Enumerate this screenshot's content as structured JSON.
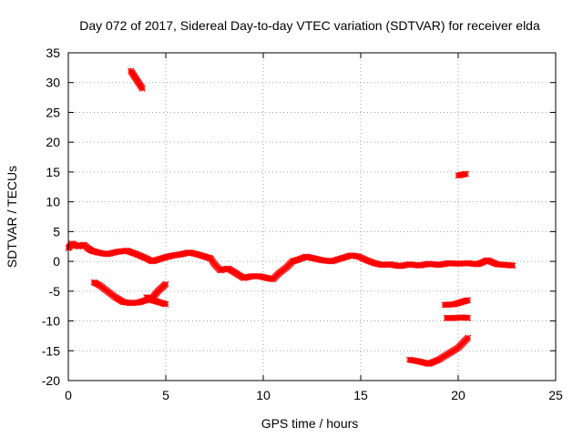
{
  "chart_data": {
    "type": "scatter",
    "title": "Day 072 of 2017, Sidereal Day-to-day VTEC variation (SDTVAR) for receiver elda",
    "xlabel": "GPS time / hours",
    "ylabel": "SDTVAR / TECUs",
    "xlim": [
      0,
      25
    ],
    "ylim": [
      -20,
      35
    ],
    "xticks": [
      0,
      5,
      10,
      15,
      20,
      25
    ],
    "yticks": [
      -20,
      -15,
      -10,
      -5,
      0,
      5,
      10,
      15,
      20,
      25,
      30,
      35
    ],
    "grid": true,
    "legend": "none",
    "marker_color": "#ff0000",
    "series": [
      {
        "name": "main-track",
        "points": [
          [
            0,
            2.2
          ],
          [
            0.2,
            3.0
          ],
          [
            0.5,
            2.5
          ],
          [
            0.8,
            2.8
          ],
          [
            1.0,
            2.2
          ],
          [
            1.2,
            1.8
          ],
          [
            1.5,
            1.5
          ],
          [
            2.0,
            1.2
          ],
          [
            2.5,
            1.6
          ],
          [
            3.0,
            1.8
          ],
          [
            3.5,
            1.2
          ],
          [
            4.0,
            0.5
          ],
          [
            4.3,
            0.0
          ],
          [
            4.6,
            0.3
          ],
          [
            5.0,
            0.7
          ],
          [
            5.4,
            1.0
          ],
          [
            5.8,
            1.2
          ],
          [
            6.2,
            1.5
          ],
          [
            6.6,
            1.2
          ],
          [
            7.0,
            0.8
          ],
          [
            7.3,
            0.5
          ],
          [
            7.5,
            -0.5
          ],
          [
            7.8,
            -1.5
          ],
          [
            8.2,
            -1.2
          ],
          [
            8.6,
            -2.0
          ],
          [
            9.0,
            -2.8
          ],
          [
            9.4,
            -2.5
          ],
          [
            9.8,
            -2.5
          ],
          [
            10.2,
            -2.8
          ],
          [
            10.5,
            -3.0
          ],
          [
            10.8,
            -2.0
          ],
          [
            11.2,
            -1.0
          ],
          [
            11.5,
            0.0
          ],
          [
            11.8,
            0.3
          ],
          [
            12.2,
            0.8
          ],
          [
            12.6,
            0.5
          ],
          [
            13.0,
            0.2
          ],
          [
            13.5,
            0.0
          ],
          [
            14.0,
            0.5
          ],
          [
            14.5,
            1.0
          ],
          [
            14.9,
            0.8
          ],
          [
            15.3,
            0.2
          ],
          [
            15.7,
            -0.3
          ],
          [
            16.1,
            -0.6
          ],
          [
            16.5,
            -0.5
          ],
          [
            17.0,
            -0.8
          ],
          [
            17.5,
            -0.5
          ],
          [
            18.0,
            -0.7
          ],
          [
            18.5,
            -0.4
          ],
          [
            19.0,
            -0.6
          ],
          [
            19.5,
            -0.3
          ],
          [
            20.0,
            -0.4
          ],
          [
            20.5,
            -0.3
          ],
          [
            21.0,
            -0.5
          ],
          [
            21.5,
            0.2
          ],
          [
            22.0,
            -0.5
          ],
          [
            22.5,
            -0.6
          ],
          [
            22.8,
            -0.7
          ]
        ]
      },
      {
        "name": "lower-left-track",
        "points": [
          [
            1.3,
            -3.5
          ],
          [
            1.6,
            -4.0
          ],
          [
            2.0,
            -5.0
          ],
          [
            2.4,
            -6.0
          ],
          [
            2.8,
            -6.8
          ],
          [
            3.2,
            -7.0
          ],
          [
            3.6,
            -6.9
          ],
          [
            4.0,
            -6.5
          ],
          [
            4.3,
            -6.2
          ],
          [
            4.6,
            -5.0
          ],
          [
            5.0,
            -3.8
          ]
        ]
      },
      {
        "name": "lower-left-branch",
        "points": [
          [
            4.0,
            -6.0
          ],
          [
            4.3,
            -6.5
          ],
          [
            4.6,
            -6.8
          ],
          [
            5.0,
            -7.2
          ]
        ]
      },
      {
        "name": "high-segment-early",
        "points": [
          [
            3.2,
            32.0
          ],
          [
            3.5,
            30.5
          ],
          [
            3.8,
            29.0
          ]
        ]
      },
      {
        "name": "high-segment-late",
        "points": [
          [
            20.0,
            14.4
          ],
          [
            20.4,
            14.7
          ]
        ]
      },
      {
        "name": "lower-right-track",
        "points": [
          [
            17.5,
            -16.5
          ],
          [
            18.0,
            -16.8
          ],
          [
            18.5,
            -17.2
          ],
          [
            19.0,
            -16.5
          ],
          [
            19.5,
            -15.5
          ],
          [
            20.0,
            -14.5
          ],
          [
            20.5,
            -12.8
          ]
        ]
      },
      {
        "name": "lower-right-short-a",
        "points": [
          [
            19.3,
            -7.3
          ],
          [
            19.8,
            -7.2
          ],
          [
            20.2,
            -6.8
          ],
          [
            20.5,
            -6.5
          ]
        ]
      },
      {
        "name": "lower-right-short-b",
        "points": [
          [
            19.4,
            -9.5
          ],
          [
            19.8,
            -9.5
          ],
          [
            20.2,
            -9.4
          ],
          [
            20.5,
            -9.5
          ]
        ]
      }
    ]
  }
}
